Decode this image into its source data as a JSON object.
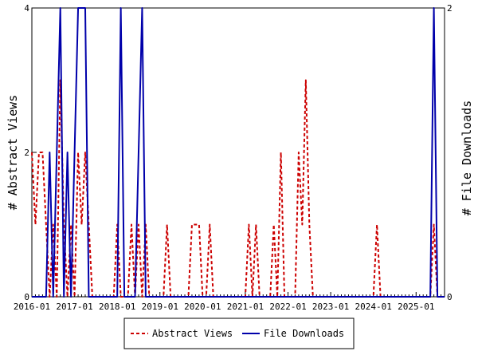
{
  "chart_data": {
    "type": "line",
    "x_range": [
      "2016-01",
      "2025-09"
    ],
    "x_tick_labels": [
      "2016-01",
      "2017-01",
      "2018-01",
      "2019-01",
      "2020-01",
      "2021-01",
      "2022-01",
      "2023-01",
      "2024-01",
      "2025-01"
    ],
    "y_left": {
      "label": "# Abstract Views",
      "range": [
        0,
        4
      ],
      "tick_labels": [
        "0",
        "2",
        "4"
      ]
    },
    "y_right": {
      "label": "# File Downloads",
      "range": [
        0,
        2
      ],
      "tick_labels": [
        "0",
        "2"
      ]
    },
    "legend_position": "bottom-center",
    "grid": false,
    "series": [
      {
        "name": "Abstract Views",
        "axis": "left",
        "color": "#cc0000",
        "style": "dashed",
        "x": [
          "2016-01",
          "2016-02",
          "2016-03",
          "2016-04",
          "2016-05",
          "2016-06",
          "2016-07",
          "2016-08",
          "2016-09",
          "2016-10",
          "2016-11",
          "2016-12",
          "2017-01",
          "2017-02",
          "2017-03",
          "2017-04",
          "2017-05",
          "2017-06",
          "2017-07",
          "2017-08",
          "2017-09",
          "2017-10",
          "2017-11",
          "2017-12",
          "2018-01",
          "2018-02",
          "2018-03",
          "2018-04",
          "2018-05",
          "2018-06",
          "2018-07",
          "2018-08",
          "2018-09",
          "2018-10",
          "2018-11",
          "2018-12",
          "2019-01",
          "2019-02",
          "2019-03",
          "2019-04",
          "2019-05",
          "2019-06",
          "2019-07",
          "2019-08",
          "2019-09",
          "2019-10",
          "2019-11",
          "2019-12",
          "2020-01",
          "2020-02",
          "2020-03",
          "2020-04",
          "2020-05",
          "2020-06",
          "2020-07",
          "2020-08",
          "2020-09",
          "2020-10",
          "2020-11",
          "2020-12",
          "2021-01",
          "2021-02",
          "2021-03",
          "2021-04",
          "2021-05",
          "2021-06",
          "2021-07",
          "2021-08",
          "2021-09",
          "2021-10",
          "2021-11",
          "2021-12",
          "2022-01",
          "2022-02",
          "2022-03",
          "2022-04",
          "2022-05",
          "2022-06",
          "2022-07",
          "2022-08",
          "2022-09",
          "2022-10",
          "2022-11",
          "2022-12",
          "2023-01",
          "2023-02",
          "2023-03",
          "2023-04",
          "2023-05",
          "2023-06",
          "2023-07",
          "2023-08",
          "2023-09",
          "2023-10",
          "2023-11",
          "2023-12",
          "2024-01",
          "2024-02",
          "2024-03",
          "2024-04",
          "2024-05",
          "2024-06",
          "2024-07",
          "2024-08",
          "2024-09",
          "2024-10",
          "2024-11",
          "2024-12",
          "2025-01",
          "2025-02",
          "2025-03",
          "2025-04",
          "2025-05",
          "2025-06",
          "2025-07",
          "2025-08",
          "2025-09"
        ],
        "values": [
          2,
          1,
          2,
          2,
          1,
          0,
          1,
          0,
          3,
          1,
          0,
          1,
          0,
          2,
          1,
          2,
          1,
          0,
          0,
          0,
          0,
          0,
          0,
          0,
          1,
          0,
          0,
          0,
          1,
          0,
          1,
          0,
          1,
          0,
          0,
          0,
          0,
          0,
          1,
          0,
          0,
          0,
          0,
          0,
          0,
          1,
          1,
          1,
          0,
          0,
          1,
          0,
          0,
          0,
          0,
          0,
          0,
          0,
          0,
          0,
          0,
          1,
          0,
          1,
          0,
          0,
          0,
          0,
          1,
          0,
          2,
          0,
          0,
          0,
          0,
          2,
          1,
          3,
          1,
          0,
          0,
          0,
          0,
          0,
          0,
          0,
          0,
          0,
          0,
          0,
          0,
          0,
          0,
          0,
          0,
          0,
          0,
          1,
          0,
          0,
          0,
          0,
          0,
          0,
          0,
          0,
          0,
          0,
          0,
          0,
          0,
          0,
          0,
          1,
          0,
          0,
          0
        ]
      },
      {
        "name": "File Downloads",
        "axis": "right",
        "color": "#0000aa",
        "style": "solid",
        "x": [
          "2016-01",
          "2016-02",
          "2016-03",
          "2016-04",
          "2016-05",
          "2016-06",
          "2016-07",
          "2016-08",
          "2016-09",
          "2016-10",
          "2016-11",
          "2016-12",
          "2017-01",
          "2017-02",
          "2017-03",
          "2017-04",
          "2017-05",
          "2017-06",
          "2017-07",
          "2017-08",
          "2017-09",
          "2017-10",
          "2017-11",
          "2017-12",
          "2018-01",
          "2018-02",
          "2018-03",
          "2018-04",
          "2018-05",
          "2018-06",
          "2018-07",
          "2018-08",
          "2018-09",
          "2018-10",
          "2018-11",
          "2018-12",
          "2019-01",
          "2019-02",
          "2019-03",
          "2019-04",
          "2019-05",
          "2019-06",
          "2019-07",
          "2019-08",
          "2019-09",
          "2019-10",
          "2019-11",
          "2019-12",
          "2020-01",
          "2020-02",
          "2020-03",
          "2020-04",
          "2020-05",
          "2020-06",
          "2020-07",
          "2020-08",
          "2020-09",
          "2020-10",
          "2020-11",
          "2020-12",
          "2021-01",
          "2021-02",
          "2021-03",
          "2021-04",
          "2021-05",
          "2021-06",
          "2021-07",
          "2021-08",
          "2021-09",
          "2021-10",
          "2021-11",
          "2021-12",
          "2022-01",
          "2022-02",
          "2022-03",
          "2022-04",
          "2022-05",
          "2022-06",
          "2022-07",
          "2022-08",
          "2022-09",
          "2022-10",
          "2022-11",
          "2022-12",
          "2023-01",
          "2023-02",
          "2023-03",
          "2023-04",
          "2023-05",
          "2023-06",
          "2023-07",
          "2023-08",
          "2023-09",
          "2023-10",
          "2023-11",
          "2023-12",
          "2024-01",
          "2024-02",
          "2024-03",
          "2024-04",
          "2024-05",
          "2024-06",
          "2024-07",
          "2024-08",
          "2024-09",
          "2024-10",
          "2024-11",
          "2024-12",
          "2025-01",
          "2025-02",
          "2025-03",
          "2025-04",
          "2025-05",
          "2025-06",
          "2025-07",
          "2025-08",
          "2025-09"
        ],
        "values": [
          0,
          0,
          0,
          0,
          0,
          1,
          0,
          1,
          2,
          0,
          1,
          0,
          1,
          2,
          2,
          2,
          0,
          0,
          0,
          0,
          0,
          0,
          0,
          0,
          0,
          2,
          0,
          0,
          0,
          0,
          1,
          2,
          0,
          0,
          0,
          0,
          0,
          0,
          0,
          0,
          0,
          0,
          0,
          0,
          0,
          0,
          0,
          0,
          0,
          0,
          0,
          0,
          0,
          0,
          0,
          0,
          0,
          0,
          0,
          0,
          0,
          0,
          0,
          0,
          0,
          0,
          0,
          0,
          0,
          0,
          0,
          0,
          0,
          0,
          0,
          0,
          0,
          0,
          0,
          0,
          0,
          0,
          0,
          0,
          0,
          0,
          0,
          0,
          0,
          0,
          0,
          0,
          0,
          0,
          0,
          0,
          0,
          0,
          0,
          0,
          0,
          0,
          0,
          0,
          0,
          0,
          0,
          0,
          0,
          0,
          0,
          0,
          0,
          2,
          0,
          0,
          0
        ]
      }
    ]
  }
}
